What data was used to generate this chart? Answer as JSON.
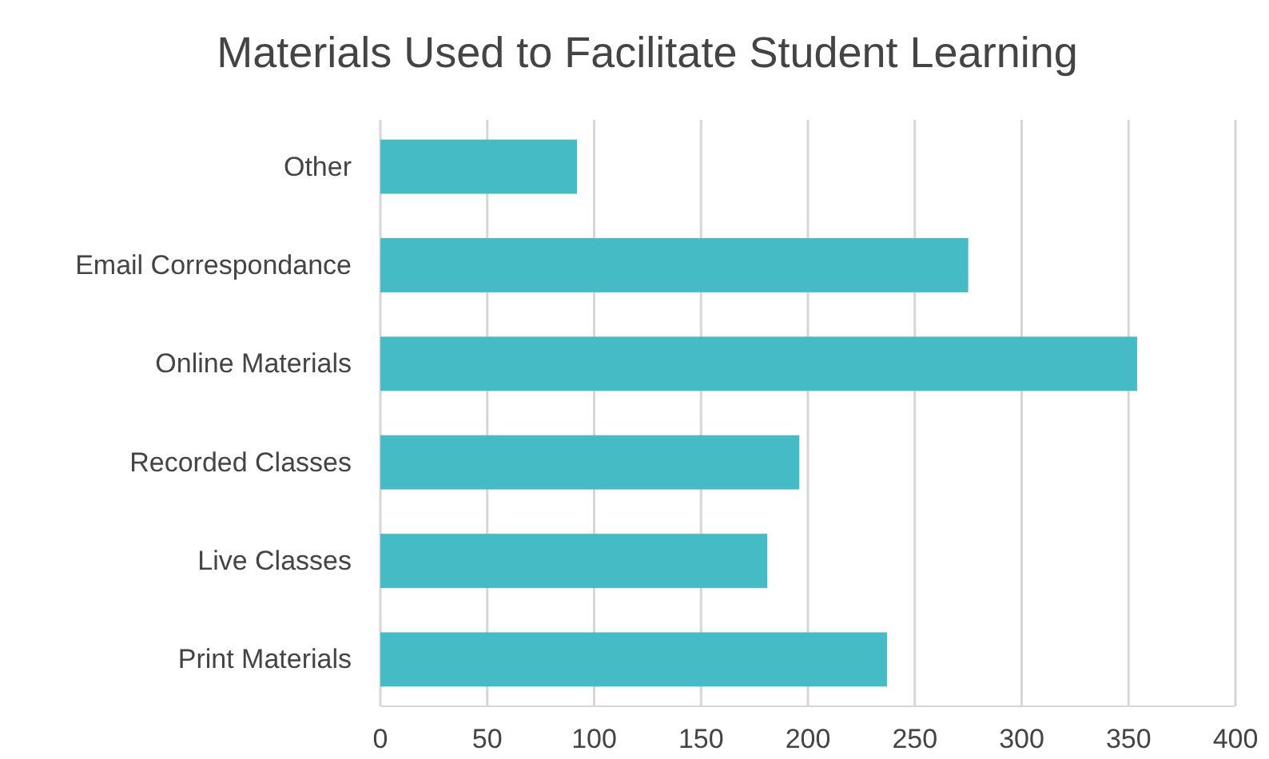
{
  "chart_data": {
    "type": "bar",
    "orientation": "horizontal",
    "title": "Materials Used to Facilitate Student Learning",
    "categories": [
      "Other",
      "Email Correspondance",
      "Online Materials",
      "Recorded Classes",
      "Live Classes",
      "Print Materials"
    ],
    "values": [
      92,
      275,
      354,
      196,
      181,
      237
    ],
    "color": "#45bbc5",
    "xlim": [
      0,
      400
    ],
    "xticks": [
      0,
      50,
      100,
      150,
      200,
      250,
      300,
      350,
      400
    ],
    "grid": "x"
  }
}
